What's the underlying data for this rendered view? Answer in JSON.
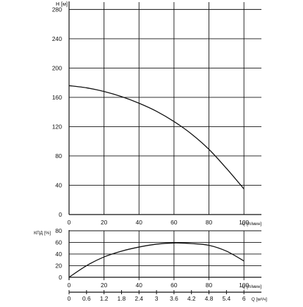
{
  "colors": {
    "background": "#ffffff",
    "grid": "#111111",
    "curve": "#111111",
    "text": "#111111"
  },
  "chart_data": [
    {
      "type": "line",
      "ylabel": "H [м]",
      "xlabel": "Q [л/мин]",
      "xlim": [
        0,
        110
      ],
      "ylim": [
        0,
        290
      ],
      "x_ticks": [
        "0",
        "20",
        "40",
        "60",
        "80",
        "100"
      ],
      "y_ticks": [
        "0",
        "40",
        "80",
        "120",
        "160",
        "200",
        "240",
        "280"
      ],
      "grid": true,
      "series": [
        {
          "x": [
            0,
            10,
            20,
            30,
            40,
            50,
            60,
            70,
            80,
            90,
            100
          ],
          "y": [
            176,
            173,
            168,
            161,
            152,
            141,
            127,
            110,
            89,
            63,
            35
          ]
        }
      ]
    },
    {
      "type": "line",
      "ylabel": "КПД [%]",
      "xlabel": "Q [л/мин]",
      "xlim": [
        0,
        110
      ],
      "ylim": [
        -5,
        80
      ],
      "x_ticks": [
        "0",
        "20",
        "40",
        "60",
        "80",
        "100"
      ],
      "y_ticks": [
        "0",
        "20",
        "40",
        "60",
        "80"
      ],
      "grid": true,
      "series": [
        {
          "x": [
            0,
            10,
            20,
            30,
            40,
            50,
            60,
            70,
            80,
            90,
            100
          ],
          "y": [
            0,
            20,
            35,
            45,
            52,
            57,
            59,
            58,
            55,
            45,
            28
          ]
        }
      ]
    }
  ],
  "secondary_axis": {
    "label": "Q [м³/ч]",
    "ticks": [
      "0",
      "0.6",
      "1.2",
      "1.8",
      "2.4",
      "3",
      "3.6",
      "4.2",
      "4.8",
      "5.4",
      "6"
    ],
    "xlim": [
      0,
      6.6
    ]
  }
}
